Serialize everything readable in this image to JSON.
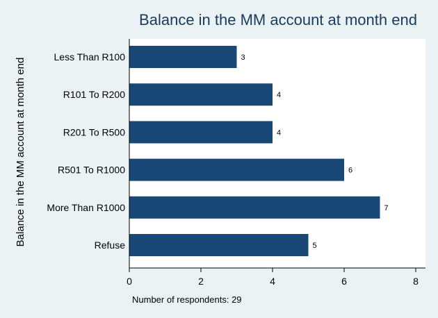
{
  "chart_data": {
    "type": "bar",
    "orientation": "horizontal",
    "title": "Balance in the MM account at month end",
    "ylabel": "Balance in the MM account at month end",
    "xlabel": "",
    "note": "Number of respondents: 29",
    "categories": [
      "Less Than R100",
      "R101 To R200",
      "R201 To R500",
      "R501 To R1000",
      "More Than R1000",
      "Refuse"
    ],
    "values": [
      3,
      4,
      4,
      6,
      7,
      5
    ],
    "data_labels": [
      "3",
      "4",
      "4",
      "6",
      "7",
      "5"
    ],
    "xlim": [
      0,
      8
    ],
    "x_ticks": [
      "0",
      "2",
      "4",
      "6",
      "8"
    ],
    "grid": false,
    "legend": "none",
    "colors": {
      "bar": "#1a4876",
      "background": "#eaf2f3",
      "plot_background": "#ffffff",
      "title": "#1a3a5e"
    }
  }
}
